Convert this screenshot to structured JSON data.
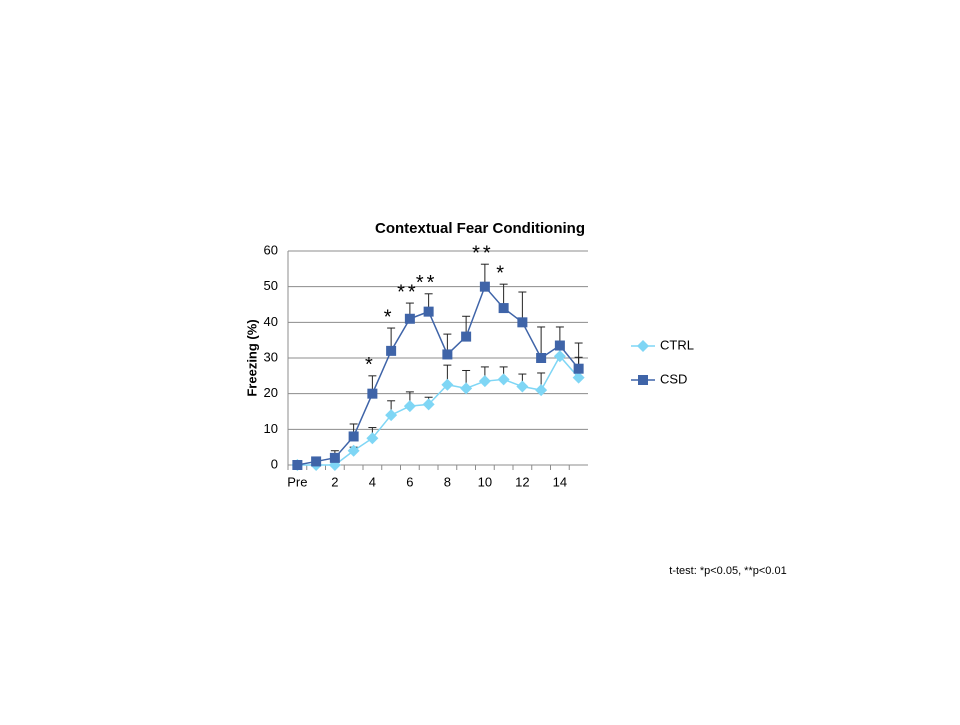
{
  "chart_data": {
    "type": "line",
    "title": "Contextual Fear Conditioning",
    "y_label": "Freezing (%)",
    "categories": [
      "Pre",
      null,
      "2",
      null,
      "4",
      null,
      "6",
      null,
      "8",
      null,
      "10",
      null,
      "12",
      null,
      "14",
      null
    ],
    "series": [
      {
        "name": "CTRL",
        "color": "#7fd6f5",
        "marker": "diamond",
        "values": [
          0,
          0,
          0,
          4,
          7.5,
          14,
          16.5,
          17,
          22.5,
          21.5,
          23.5,
          24,
          22,
          21,
          30.5,
          24.5
        ],
        "errors": [
          0,
          0,
          0,
          1,
          3,
          4,
          4,
          2,
          5.5,
          5,
          4,
          3.5,
          3.5,
          4.8,
          2,
          5.7
        ]
      },
      {
        "name": "CSD",
        "color": "#3f64a8",
        "marker": "square",
        "values": [
          0,
          1,
          2,
          8,
          20,
          32,
          41,
          43,
          31,
          36,
          50,
          44,
          40,
          30,
          33.5,
          27
        ],
        "errors": [
          0,
          0.5,
          2,
          3.5,
          5,
          6.4,
          4.4,
          5,
          5.7,
          5.7,
          6.3,
          6.7,
          8.5,
          8.7,
          5.2,
          7.2
        ]
      }
    ],
    "significance": [
      null,
      null,
      null,
      null,
      "*",
      "*",
      "**",
      "**",
      null,
      null,
      "**",
      "*",
      null,
      null,
      null,
      null
    ],
    "ylim": [
      0,
      60
    ],
    "yticks": [
      0,
      10,
      20,
      30,
      40,
      50,
      60
    ],
    "grid": true,
    "legend": "right",
    "footnote": "t-test: *p<0.05, **p<0.01"
  }
}
